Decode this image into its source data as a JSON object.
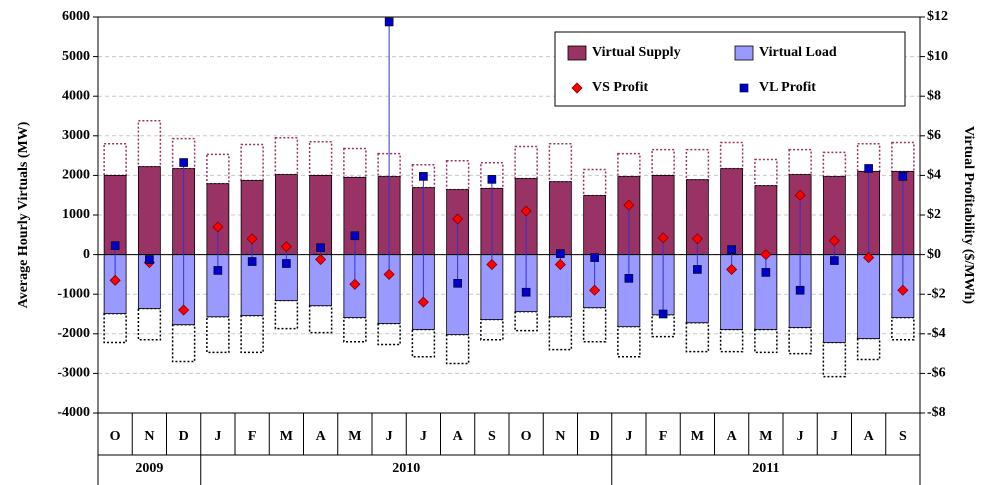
{
  "chart_data": {
    "type": "bar-combo",
    "y_label": "Average Hourly Virtuals (MW)",
    "y2_label": "Virtual Profitability  ($/MWh)",
    "categories": [
      "O",
      "N",
      "D",
      "J",
      "F",
      "M",
      "A",
      "M",
      "J",
      "J",
      "A",
      "S",
      "O",
      "N",
      "D",
      "J",
      "F",
      "M",
      "A",
      "M",
      "J",
      "J",
      "A",
      "S"
    ],
    "years": [
      "2009",
      null,
      null,
      "2010",
      null,
      null,
      null,
      null,
      null,
      null,
      null,
      null,
      null,
      null,
      null,
      "2011",
      null,
      null,
      null,
      null,
      null,
      null,
      null,
      null
    ],
    "ylim": [
      -4000,
      6000
    ],
    "yticks": [
      -4000,
      -3000,
      -2000,
      -1000,
      0,
      1000,
      2000,
      3000,
      4000,
      5000,
      6000
    ],
    "y2lim": [
      -8,
      12
    ],
    "y2ticks": [
      {
        "value": -8,
        "label": "-$8"
      },
      {
        "value": -6,
        "label": "-$6"
      },
      {
        "value": -4,
        "label": "-$4"
      },
      {
        "value": -2,
        "label": "-$2"
      },
      {
        "value": 0,
        "label": "$0"
      },
      {
        "value": 2,
        "label": "$2"
      },
      {
        "value": 4,
        "label": "$4"
      },
      {
        "value": 6,
        "label": "$6"
      },
      {
        "value": 8,
        "label": "$8"
      },
      {
        "value": 10,
        "label": "$10"
      },
      {
        "value": 12,
        "label": "$12"
      }
    ],
    "grid": true,
    "series": [
      {
        "name": "Virtual Supply",
        "kind": "bar",
        "color": "#993366",
        "values": [
          2000,
          2220,
          2170,
          1790,
          1870,
          2020,
          2000,
          1950,
          1970,
          1690,
          1640,
          1670,
          1920,
          1840,
          1490,
          1970,
          2000,
          1890,
          2170,
          1740,
          2020,
          1970,
          2100,
          2100
        ]
      },
      {
        "name": "Virtual Load",
        "kind": "bar",
        "color": "#9999ff",
        "values": [
          -1490,
          -1360,
          -1770,
          -1570,
          -1540,
          -1160,
          -1290,
          -1590,
          -1740,
          -1890,
          -2020,
          -1640,
          -1440,
          -1570,
          -1340,
          -1820,
          -1520,
          -1720,
          -1890,
          -1890,
          -1840,
          -2220,
          -2120,
          -1590
        ]
      },
      {
        "name": "VS Profit",
        "kind": "diamond",
        "axis": "y2",
        "color": "#ff0000",
        "values": [
          -1.3,
          -0.4,
          -2.8,
          1.4,
          0.8,
          0.4,
          -0.25,
          -1.5,
          -1.0,
          -2.4,
          1.8,
          -0.5,
          2.2,
          -0.5,
          -1.8,
          2.5,
          0.85,
          0.8,
          -0.75,
          0,
          3.0,
          0.7,
          -0.15,
          -1.8
        ]
      },
      {
        "name": "VL Profit",
        "kind": "square",
        "axis": "y2",
        "color": "#0000cc",
        "values": [
          0.45,
          -0.25,
          4.65,
          -0.8,
          -0.35,
          -0.45,
          0.35,
          0.95,
          11.75,
          3.95,
          -1.45,
          3.8,
          -1.9,
          0.05,
          -0.15,
          -1.2,
          -3.0,
          -0.75,
          0.25,
          -0.9,
          -1.8,
          -0.3,
          4.35,
          3.95
        ]
      },
      {
        "kind": "dotted",
        "stack_on": 0,
        "color": "#993366",
        "values": [
          800,
          1160,
          760,
          740,
          910,
          930,
          850,
          730,
          580,
          580,
          730,
          650,
          810,
          960,
          660,
          580,
          650,
          760,
          660,
          660,
          630,
          610,
          700,
          730
        ]
      },
      {
        "kind": "dotted",
        "stack_on": 1,
        "color": "#000000",
        "values": [
          -730,
          -790,
          -930,
          -900,
          -930,
          -710,
          -680,
          -610,
          -530,
          -690,
          -730,
          -510,
          -480,
          -830,
          -860,
          -760,
          -550,
          -730,
          -560,
          -580,
          -660,
          -860,
          -530,
          -560
        ]
      }
    ]
  }
}
